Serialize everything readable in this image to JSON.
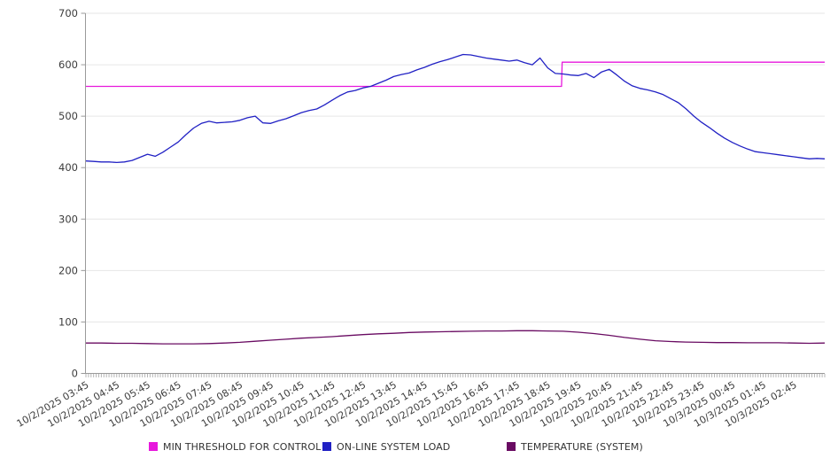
{
  "chart_data": {
    "type": "line",
    "title": "",
    "grid": "horizontal",
    "legend_position": "bottom",
    "x_axis": {
      "span_hours": 24,
      "minor_tick_minutes": 5,
      "labels": [
        "10/2/2025 03:45",
        "10/2/2025 04:45",
        "10/2/2025 05:45",
        "10/2/2025 06:45",
        "10/2/2025 07:45",
        "10/2/2025 08:45",
        "10/2/2025 09:45",
        "10/2/2025 10:45",
        "10/2/2025 11:45",
        "10/2/2025 12:45",
        "10/2/2025 13:45",
        "10/2/2025 14:45",
        "10/2/2025 15:45",
        "10/2/2025 16:45",
        "10/2/2025 17:45",
        "10/2/2025 18:45",
        "10/2/2025 19:45",
        "10/2/2025 20:45",
        "10/2/2025 21:45",
        "10/2/2025 22:45",
        "10/2/2025 23:45",
        "10/3/2025 00:45",
        "10/3/2025 01:45",
        "10/3/2025 02:45"
      ]
    },
    "y_axis": {
      "min": 0,
      "max": 700,
      "ticks": [
        0,
        100,
        200,
        300,
        400,
        500,
        600,
        700
      ]
    },
    "series": [
      {
        "name": "MIN THRESHOLD FOR CONTROL",
        "color": "#e718dc",
        "kind": "step",
        "points": [
          [
            0,
            558
          ],
          [
            15.45,
            558
          ],
          [
            15.47,
            605
          ],
          [
            24,
            605
          ]
        ]
      },
      {
        "name": "ON-LINE SYSTEM LOAD",
        "color": "#2121c4",
        "kind": "line",
        "interval_hours": 0.25,
        "values": [
          413,
          412,
          411,
          411,
          410,
          411,
          414,
          420,
          426,
          422,
          430,
          440,
          450,
          464,
          477,
          486,
          490,
          487,
          488,
          489,
          492,
          497,
          500,
          487,
          486,
          491,
          495,
          501,
          507,
          511,
          514,
          522,
          531,
          540,
          547,
          550,
          555,
          558,
          564,
          570,
          577,
          581,
          584,
          590,
          595,
          601,
          606,
          610,
          615,
          620,
          619,
          616,
          613,
          611,
          609,
          607,
          609,
          604,
          600,
          613,
          594,
          583,
          582,
          580,
          579,
          583,
          575,
          586,
          591,
          580,
          568,
          559,
          554,
          551,
          547,
          542,
          534,
          526,
          514,
          500,
          488,
          478,
          467,
          457,
          449,
          442,
          436,
          431,
          429,
          427,
          425,
          423,
          421,
          419,
          417,
          418,
          417
        ]
      },
      {
        "name": "TEMPERATURE (SYSTEM)",
        "color": "#690b62",
        "kind": "line",
        "interval_hours": 0.5,
        "values": [
          59,
          59,
          58.5,
          58.5,
          58,
          57.5,
          57.5,
          57.5,
          58,
          59,
          60.5,
          62.5,
          64.5,
          66.5,
          68.5,
          70,
          71.5,
          73.5,
          75.5,
          77,
          78,
          79.5,
          80.5,
          81,
          81.5,
          82,
          82.5,
          82.5,
          83,
          83,
          82.5,
          82,
          80,
          77.5,
          74,
          70,
          66.5,
          63.5,
          62,
          61,
          60.5,
          60,
          60,
          59.5,
          59.5,
          59.5,
          59,
          58.5,
          59
        ]
      }
    ],
    "style_colors": {
      "grid": "#e6e6e6",
      "axis": "#9a9a9a",
      "minor_tick": "#b5b5b5",
      "tick_label": "#3c3c3c"
    }
  }
}
